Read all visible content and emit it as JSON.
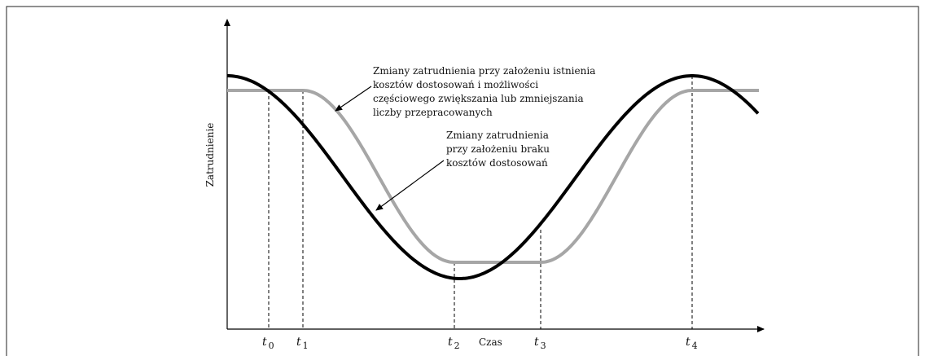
{
  "axes": {
    "y_label": "Zatrudnienie",
    "x_label": "Czas"
  },
  "time_labels": [
    {
      "main": "t",
      "sub": "0"
    },
    {
      "main": "t",
      "sub": "1"
    },
    {
      "main": "t",
      "sub": "2"
    },
    {
      "main": "t",
      "sub": "3"
    },
    {
      "main": "t",
      "sub": "4"
    }
  ],
  "annotations": [
    {
      "lines": [
        "Zmiany zatrudnienia przy założeniu istnienia",
        "kosztów dostosowań i możliwości",
        "częściowego zwiększania lub zmniejszania",
        "liczby przepracowanych"
      ]
    },
    {
      "lines": [
        "Zmiany zatrudnienia",
        "przy założeniu braku",
        "kosztów dostosowań"
      ]
    }
  ]
}
